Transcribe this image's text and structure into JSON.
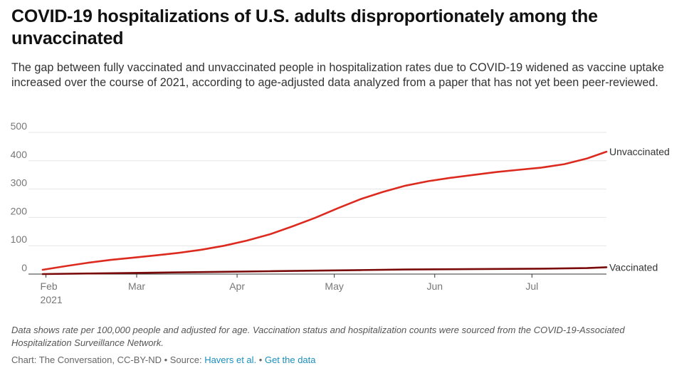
{
  "header": {
    "title": "COVID-19 hospitalizations of U.S. adults disproportionately among the unvaccinated",
    "subtitle": "The gap between fully vaccinated and unvaccinated people in hospitalization rates due to COVID-19 widened as vaccine uptake increased over the course of 2021, according to age-adjusted data analyzed from a paper that has not yet been peer-reviewed."
  },
  "notes": "Data shows rate per 100,000 people and adjusted for age. Vaccination status and hospitalization counts were sourced from the COVID-19-Associated Hospitalization Surveillance Network.",
  "footer": {
    "credit": "Chart: The Conversation, CC-BY-ND",
    "separator": " • ",
    "source_prefix": "Source: ",
    "source_link": "Havers et al.",
    "data_link": "Get the data"
  },
  "colors": {
    "unvaccinated": "#dd2a1f",
    "vaccinated": "#7a0a0a",
    "grid": "#e6e6e6",
    "axis": "#333333"
  },
  "chart_data": {
    "type": "line",
    "title": "COVID-19 hospitalizations of U.S. adults disproportionately among the unvaccinated",
    "xlabel": "",
    "ylabel": "",
    "ylim": [
      0,
      500
    ],
    "yticks": [
      "0",
      "100",
      "200",
      "300",
      "400",
      "500"
    ],
    "xlim": [
      "2021-01-31",
      "2021-07-24"
    ],
    "xticks": [
      {
        "date": "2021-02-01",
        "label": "Feb",
        "sublabel": "2021"
      },
      {
        "date": "2021-03-01",
        "label": "Mar",
        "sublabel": ""
      },
      {
        "date": "2021-04-01",
        "label": "Apr",
        "sublabel": ""
      },
      {
        "date": "2021-05-01",
        "label": "May",
        "sublabel": ""
      },
      {
        "date": "2021-06-01",
        "label": "Jun",
        "sublabel": ""
      },
      {
        "date": "2021-07-01",
        "label": "Jul",
        "sublabel": ""
      }
    ],
    "grid": true,
    "legend": "inline-right",
    "series": [
      {
        "name": "Unvaccinated",
        "color": "#dd2a1f",
        "points": [
          {
            "x": "2021-01-31",
            "y": 15
          },
          {
            "x": "2021-02-07",
            "y": 28
          },
          {
            "x": "2021-02-14",
            "y": 40
          },
          {
            "x": "2021-02-21",
            "y": 50
          },
          {
            "x": "2021-02-28",
            "y": 58
          },
          {
            "x": "2021-03-07",
            "y": 66
          },
          {
            "x": "2021-03-14",
            "y": 75
          },
          {
            "x": "2021-03-21",
            "y": 86
          },
          {
            "x": "2021-03-28",
            "y": 100
          },
          {
            "x": "2021-04-04",
            "y": 118
          },
          {
            "x": "2021-04-11",
            "y": 140
          },
          {
            "x": "2021-04-18",
            "y": 168
          },
          {
            "x": "2021-04-25",
            "y": 198
          },
          {
            "x": "2021-05-02",
            "y": 232
          },
          {
            "x": "2021-05-09",
            "y": 264
          },
          {
            "x": "2021-05-16",
            "y": 290
          },
          {
            "x": "2021-05-23",
            "y": 312
          },
          {
            "x": "2021-05-30",
            "y": 328
          },
          {
            "x": "2021-06-06",
            "y": 340
          },
          {
            "x": "2021-06-13",
            "y": 350
          },
          {
            "x": "2021-06-20",
            "y": 360
          },
          {
            "x": "2021-06-27",
            "y": 368
          },
          {
            "x": "2021-07-04",
            "y": 376
          },
          {
            "x": "2021-07-11",
            "y": 388
          },
          {
            "x": "2021-07-18",
            "y": 408
          },
          {
            "x": "2021-07-24",
            "y": 432
          }
        ]
      },
      {
        "name": "Vaccinated",
        "color": "#7a0a0a",
        "points": [
          {
            "x": "2021-01-31",
            "y": 0
          },
          {
            "x": "2021-02-14",
            "y": 2
          },
          {
            "x": "2021-02-28",
            "y": 4
          },
          {
            "x": "2021-03-14",
            "y": 6
          },
          {
            "x": "2021-03-28",
            "y": 8
          },
          {
            "x": "2021-04-11",
            "y": 10
          },
          {
            "x": "2021-04-25",
            "y": 12
          },
          {
            "x": "2021-05-09",
            "y": 14
          },
          {
            "x": "2021-05-23",
            "y": 16
          },
          {
            "x": "2021-06-06",
            "y": 17
          },
          {
            "x": "2021-06-20",
            "y": 18
          },
          {
            "x": "2021-07-04",
            "y": 19
          },
          {
            "x": "2021-07-18",
            "y": 21
          },
          {
            "x": "2021-07-24",
            "y": 24
          }
        ]
      }
    ]
  }
}
